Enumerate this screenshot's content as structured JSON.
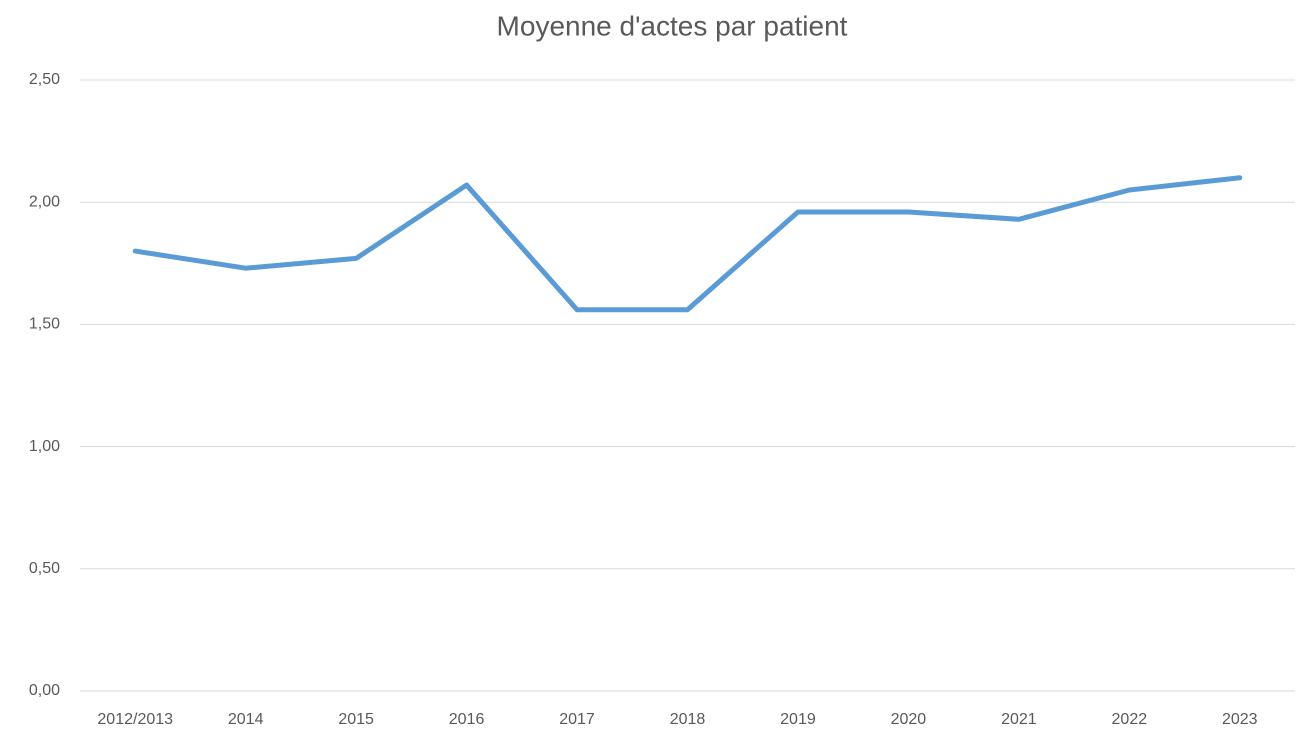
{
  "chart_data": {
    "type": "line",
    "title": "Moyenne d'actes par patient",
    "categories": [
      "2012/2013",
      "2014",
      "2015",
      "2016",
      "2017",
      "2018",
      "2019",
      "2020",
      "2021",
      "2022",
      "2023"
    ],
    "series": [
      {
        "name": "Moyenne d'actes par patient",
        "color": "#5b9bd5",
        "values": [
          1.8,
          1.73,
          1.77,
          2.07,
          1.56,
          1.56,
          1.96,
          1.96,
          1.93,
          2.05,
          2.1
        ]
      }
    ],
    "ylim": [
      0,
      2.5
    ],
    "yticks": [
      {
        "value": 0,
        "label": "0,00"
      },
      {
        "value": 0.5,
        "label": "0,50"
      },
      {
        "value": 1,
        "label": "1,00"
      },
      {
        "value": 1.5,
        "label": "1,50"
      },
      {
        "value": 2,
        "label": "2,00"
      },
      {
        "value": 2.5,
        "label": "2,50"
      }
    ],
    "grid": true
  }
}
